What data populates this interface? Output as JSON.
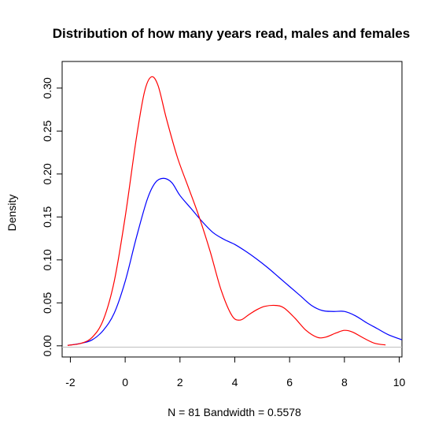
{
  "chart_data": {
    "type": "line",
    "title": "Distribution of how many years read, males and females",
    "xlabel": "N = 81   Bandwidth = 0.5578",
    "ylabel": "Density",
    "xlim": [
      -2.3,
      10.1
    ],
    "ylim": [
      -0.013,
      0.331
    ],
    "x_ticks": [
      -2,
      0,
      2,
      4,
      6,
      8,
      10
    ],
    "x_tick_labels": [
      "-2",
      "0",
      "2",
      "4",
      "6",
      "8",
      "10"
    ],
    "y_ticks": [
      0.0,
      0.05,
      0.1,
      0.15,
      0.2,
      0.25,
      0.3
    ],
    "y_tick_labels": [
      "0.00",
      "0.05",
      "0.10",
      "0.15",
      "0.20",
      "0.25",
      "0.30"
    ],
    "baseline": 0,
    "grid": false,
    "legend": "none",
    "series": [
      {
        "color": "#0000ff",
        "x": [
          -2.1,
          -1.6,
          -1.2,
          -0.8,
          -0.4,
          0.0,
          0.4,
          0.8,
          1.1,
          1.4,
          1.7,
          2.0,
          2.4,
          2.8,
          3.2,
          3.6,
          4.0,
          4.4,
          4.8,
          5.2,
          5.6,
          6.0,
          6.4,
          6.8,
          7.2,
          7.6,
          8.0,
          8.4,
          8.8,
          9.2,
          9.6,
          10.1
        ],
        "y": [
          0.0005,
          0.003,
          0.007,
          0.018,
          0.038,
          0.075,
          0.125,
          0.17,
          0.19,
          0.195,
          0.19,
          0.175,
          0.16,
          0.145,
          0.132,
          0.124,
          0.118,
          0.11,
          0.101,
          0.091,
          0.08,
          0.069,
          0.058,
          0.047,
          0.041,
          0.04,
          0.04,
          0.035,
          0.027,
          0.02,
          0.013,
          0.007
        ]
      },
      {
        "color": "#ff0000",
        "x": [
          -2.1,
          -1.6,
          -1.2,
          -0.8,
          -0.4,
          0.0,
          0.4,
          0.7,
          0.95,
          1.2,
          1.5,
          1.9,
          2.3,
          2.7,
          3.1,
          3.5,
          3.9,
          4.2,
          4.5,
          4.8,
          5.1,
          5.5,
          5.8,
          6.2,
          6.6,
          7.0,
          7.3,
          7.7,
          8.0,
          8.3,
          8.7,
          9.1,
          9.5
        ],
        "y": [
          0.0005,
          0.003,
          0.01,
          0.03,
          0.075,
          0.15,
          0.24,
          0.295,
          0.313,
          0.303,
          0.265,
          0.22,
          0.185,
          0.15,
          0.11,
          0.065,
          0.035,
          0.03,
          0.036,
          0.042,
          0.046,
          0.047,
          0.044,
          0.032,
          0.018,
          0.01,
          0.01,
          0.015,
          0.018,
          0.016,
          0.009,
          0.003,
          0.001
        ]
      }
    ]
  }
}
